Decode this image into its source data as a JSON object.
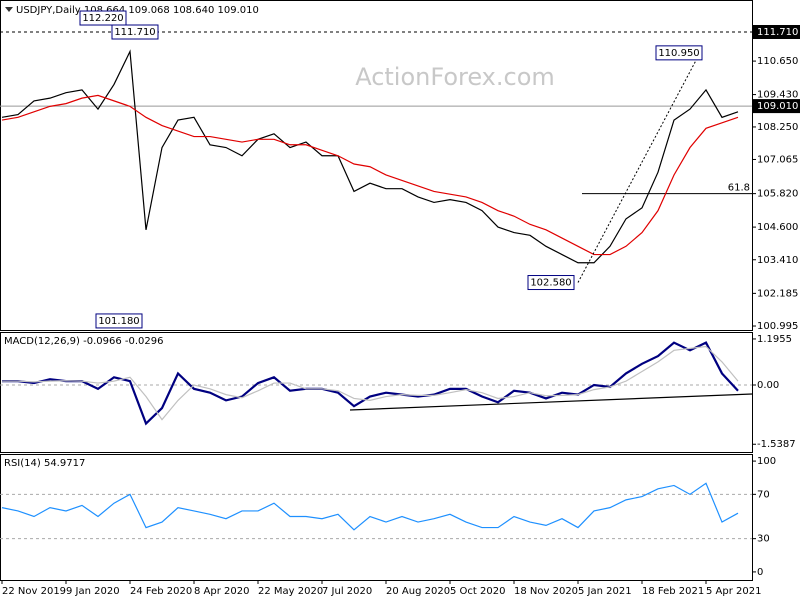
{
  "chart_data": [
    {
      "type": "line",
      "title": "USDJPY,Daily 108.664 109.068 108.640 109.010",
      "watermark": "ActionForex.com",
      "categories": [
        "22 Nov 2019",
        null,
        null,
        null,
        "9 Jan 2020",
        null,
        null,
        null,
        "24 Feb 2020",
        null,
        null,
        null,
        "8 Apr 2020",
        null,
        null,
        null,
        "22 May 2020",
        null,
        null,
        null,
        "7 Jul 2020",
        null,
        null,
        null,
        "20 Aug 2020",
        null,
        null,
        null,
        "5 Oct 2020",
        null,
        null,
        null,
        "18 Nov 2020",
        null,
        null,
        null,
        "5 Jan 2021",
        null,
        null,
        null,
        "18 Feb 2021",
        null,
        null,
        null,
        "5 Apr 2021",
        null,
        null
      ],
      "series": [
        {
          "color": "#000000",
          "values": [
            108.6,
            108.7,
            109.2,
            109.3,
            109.5,
            109.6,
            108.9,
            109.8,
            111.0,
            104.5,
            107.5,
            108.5,
            108.6,
            107.6,
            107.5,
            107.2,
            107.8,
            108.0,
            107.5,
            107.7,
            107.2,
            107.2,
            105.9,
            106.2,
            106.0,
            106.0,
            105.7,
            105.5,
            105.6,
            105.5,
            105.2,
            104.6,
            104.4,
            104.3,
            103.9,
            103.6,
            103.3,
            103.3,
            103.9,
            104.9,
            105.3,
            106.6,
            108.5,
            108.9,
            109.6,
            108.6,
            108.8
          ]
        },
        {
          "color": "#e00000",
          "values": [
            108.5,
            108.6,
            108.8,
            109.0,
            109.1,
            109.3,
            109.4,
            109.2,
            109.0,
            108.6,
            108.3,
            108.1,
            107.9,
            107.9,
            107.8,
            107.7,
            107.8,
            107.8,
            107.6,
            107.6,
            107.4,
            107.2,
            106.9,
            106.8,
            106.5,
            106.3,
            106.1,
            105.9,
            105.8,
            105.7,
            105.5,
            105.2,
            105.0,
            104.7,
            104.5,
            104.2,
            103.9,
            103.6,
            103.6,
            103.9,
            104.4,
            105.2,
            106.5,
            107.5,
            108.2,
            108.4,
            108.6
          ]
        }
      ],
      "ylim": [
        100.85,
        112.84
      ],
      "yticks": [
        {
          "value": 110.65,
          "label": "110.650"
        },
        {
          "value": 109.43,
          "label": "109.430"
        },
        {
          "value": 108.25,
          "label": "108.250"
        },
        {
          "value": 107.065,
          "label": "107.065"
        },
        {
          "value": 105.82,
          "label": "105.820"
        },
        {
          "value": 104.6,
          "label": "104.600"
        },
        {
          "value": 103.41,
          "label": "103.410"
        },
        {
          "value": 102.185,
          "label": "102.185"
        },
        {
          "value": 100.995,
          "label": "100.995"
        }
      ],
      "price_markers": [
        {
          "value": 111.71,
          "label": "111.710",
          "style": "dashed"
        },
        {
          "value": 109.01,
          "label": "109.010",
          "style": "solid"
        }
      ],
      "fib_level": {
        "value": 105.82,
        "label": "61.8"
      },
      "annotations": [
        {
          "index": 8,
          "value": 112.22,
          "label": "112.220"
        },
        {
          "index": 10,
          "value": 111.71,
          "label": "111.710"
        },
        {
          "index": 9,
          "value": 101.18,
          "label": "101.180"
        },
        {
          "index": 36,
          "value": 102.58,
          "label": "102.580"
        },
        {
          "index": 44,
          "value": 110.95,
          "label": "110.950"
        }
      ]
    },
    {
      "type": "line",
      "title": "MACD(12,26,9) -0.0966 -0.0296",
      "series": [
        {
          "color": "#000080",
          "values": [
            0.1,
            0.1,
            0.05,
            0.15,
            0.1,
            0.1,
            -0.1,
            0.2,
            0.1,
            -1.0,
            -0.6,
            0.3,
            -0.1,
            -0.2,
            -0.4,
            -0.3,
            0.05,
            0.2,
            -0.15,
            -0.1,
            -0.1,
            -0.2,
            -0.55,
            -0.3,
            -0.2,
            -0.25,
            -0.3,
            -0.25,
            -0.1,
            -0.1,
            -0.3,
            -0.45,
            -0.15,
            -0.2,
            -0.35,
            -0.2,
            -0.25,
            0.0,
            -0.05,
            0.3,
            0.55,
            0.75,
            1.1,
            0.9,
            1.1,
            0.3,
            -0.15
          ]
        },
        {
          "color": "#c0c0c0",
          "values": [
            0.1,
            0.1,
            0.08,
            0.1,
            0.11,
            0.1,
            0.05,
            0.1,
            0.2,
            -0.3,
            -0.9,
            -0.4,
            0.0,
            -0.1,
            -0.25,
            -0.33,
            -0.15,
            0.05,
            0.05,
            -0.1,
            -0.1,
            -0.15,
            -0.35,
            -0.4,
            -0.3,
            -0.25,
            -0.27,
            -0.27,
            -0.2,
            -0.12,
            -0.2,
            -0.35,
            -0.3,
            -0.2,
            -0.28,
            -0.27,
            -0.25,
            -0.12,
            -0.05,
            0.1,
            0.35,
            0.6,
            0.9,
            0.95,
            1.0,
            0.6,
            0.1
          ]
        }
      ],
      "ylim": [
        -1.74,
        1.35
      ],
      "yticks": [
        1.1955,
        {
          "value": 0,
          "label": "0.00"
        },
        -1.5387
      ]
    },
    {
      "type": "line",
      "title": "RSI(14) 54.9717",
      "series": [
        {
          "color": "#1e90ff",
          "values": [
            58,
            55,
            50,
            58,
            55,
            60,
            50,
            62,
            70,
            40,
            45,
            58,
            55,
            52,
            48,
            55,
            55,
            62,
            50,
            50,
            48,
            52,
            38,
            50,
            45,
            50,
            45,
            48,
            52,
            45,
            40,
            40,
            50,
            45,
            42,
            48,
            40,
            55,
            58,
            65,
            68,
            75,
            78,
            70,
            80,
            45,
            53
          ]
        }
      ],
      "ylim": [
        -7.3,
        105.5
      ],
      "yticks": [
        100,
        70,
        30,
        0
      ],
      "levels": [
        70,
        30
      ]
    }
  ]
}
